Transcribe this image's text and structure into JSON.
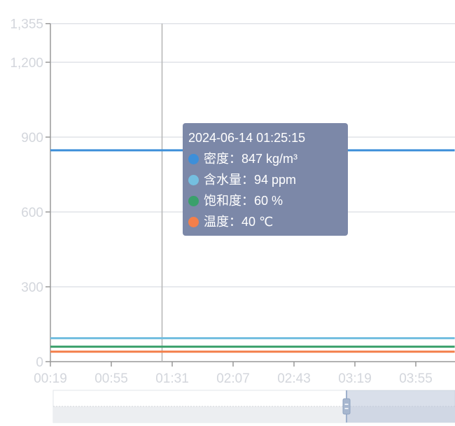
{
  "chart_data": {
    "type": "line",
    "ylim": [
      0,
      1355
    ],
    "yticks": [
      "0",
      "300",
      "600",
      "900",
      "1,200",
      "1,355"
    ],
    "ytick_values": [
      0,
      300,
      600,
      900,
      1200,
      1355
    ],
    "xticks": [
      "00:19",
      "00:55",
      "01:31",
      "02:07",
      "02:43",
      "03:19",
      "03:55"
    ],
    "x": [
      "00:19",
      "04:18"
    ],
    "grid": true,
    "series": [
      {
        "name": "密度",
        "unit": "kg/m³",
        "color": "#3d8fd9",
        "values": [
          847,
          847
        ]
      },
      {
        "name": "含水量",
        "unit": "ppm",
        "color": "#74bfe0",
        "values": [
          94,
          94
        ]
      },
      {
        "name": "饱和度",
        "unit": "%",
        "color": "#3aa06b",
        "values": [
          60,
          60
        ]
      },
      {
        "name": "温度",
        "unit": "℃",
        "color": "#f47f4a",
        "values": [
          40,
          40
        ]
      }
    ],
    "crosshair_x": "01:25",
    "tooltip": {
      "title": "2024-06-14 01:25:15",
      "rows": [
        "密度：847 kg/m³",
        "含水量：94 ppm",
        "饱和度：60 %",
        "温度：40 ℃"
      ]
    },
    "datazoom": {
      "start_percent": 73,
      "end_percent": 100
    }
  }
}
